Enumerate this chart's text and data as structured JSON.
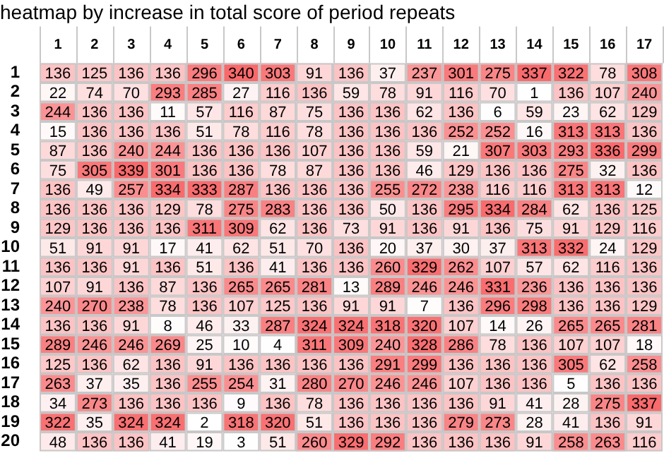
{
  "chart_data": {
    "type": "heatmap",
    "title": "heatmap by increase in total score of period repeats",
    "data_labels": true,
    "categories": [
      "1",
      "2",
      "3",
      "4",
      "5",
      "6",
      "7",
      "8",
      "9",
      "10",
      "11",
      "12",
      "13",
      "14",
      "15",
      "16",
      "17"
    ],
    "y_categories": [
      "1",
      "2",
      "3",
      "4",
      "5",
      "6",
      "7",
      "8",
      "9",
      "10",
      "11",
      "12",
      "13",
      "14",
      "15",
      "16",
      "17",
      "18",
      "19",
      "20"
    ],
    "cells": [
      [
        136,
        125,
        136,
        136,
        296,
        340,
        303,
        91,
        136,
        37,
        237,
        301,
        275,
        337,
        322,
        78,
        308
      ],
      [
        22,
        74,
        70,
        293,
        285,
        27,
        116,
        136,
        59,
        78,
        91,
        116,
        70,
        1,
        136,
        107,
        240
      ],
      [
        244,
        136,
        136,
        11,
        57,
        116,
        87,
        75,
        136,
        136,
        62,
        136,
        6,
        59,
        23,
        62,
        129
      ],
      [
        15,
        136,
        136,
        136,
        51,
        78,
        116,
        78,
        136,
        136,
        136,
        252,
        252,
        16,
        313,
        313,
        136
      ],
      [
        87,
        136,
        240,
        244,
        136,
        136,
        136,
        107,
        136,
        136,
        59,
        21,
        307,
        303,
        293,
        336,
        299
      ],
      [
        75,
        305,
        339,
        301,
        136,
        136,
        78,
        87,
        136,
        136,
        46,
        129,
        136,
        136,
        275,
        32,
        136
      ],
      [
        136,
        49,
        257,
        334,
        333,
        287,
        136,
        136,
        136,
        255,
        272,
        238,
        116,
        116,
        313,
        313,
        12
      ],
      [
        136,
        136,
        136,
        129,
        78,
        275,
        283,
        136,
        136,
        50,
        136,
        295,
        334,
        284,
        62,
        136,
        125
      ],
      [
        129,
        136,
        136,
        136,
        311,
        309,
        62,
        136,
        73,
        91,
        136,
        91,
        136,
        75,
        91,
        129,
        116
      ],
      [
        51,
        91,
        91,
        17,
        41,
        62,
        51,
        70,
        136,
        20,
        37,
        30,
        37,
        313,
        332,
        24,
        129
      ],
      [
        136,
        136,
        91,
        136,
        51,
        136,
        41,
        136,
        136,
        260,
        329,
        262,
        107,
        57,
        62,
        116,
        136
      ],
      [
        107,
        91,
        136,
        87,
        136,
        265,
        265,
        281,
        13,
        289,
        246,
        246,
        331,
        236,
        136,
        136,
        136
      ],
      [
        240,
        270,
        238,
        78,
        136,
        107,
        125,
        136,
        91,
        91,
        7,
        136,
        296,
        298,
        136,
        136,
        129
      ],
      [
        136,
        136,
        91,
        8,
        46,
        33,
        287,
        324,
        324,
        318,
        320,
        107,
        14,
        26,
        265,
        265,
        281
      ],
      [
        289,
        246,
        246,
        269,
        25,
        10,
        4,
        311,
        309,
        240,
        328,
        286,
        78,
        136,
        107,
        107,
        18
      ],
      [
        125,
        136,
        62,
        136,
        91,
        136,
        136,
        136,
        136,
        291,
        299,
        136,
        136,
        136,
        305,
        62,
        258
      ],
      [
        263,
        37,
        35,
        136,
        255,
        254,
        31,
        280,
        270,
        246,
        246,
        107,
        136,
        136,
        5,
        136,
        136
      ],
      [
        34,
        273,
        136,
        136,
        136,
        9,
        136,
        78,
        136,
        136,
        136,
        136,
        91,
        41,
        28,
        275,
        337
      ],
      [
        322,
        35,
        324,
        324,
        2,
        318,
        320,
        51,
        136,
        136,
        136,
        279,
        273,
        28,
        41,
        136,
        91
      ],
      [
        48,
        136,
        136,
        41,
        19,
        3,
        51,
        260,
        329,
        292,
        136,
        136,
        136,
        91,
        258,
        263,
        116
      ]
    ]
  }
}
